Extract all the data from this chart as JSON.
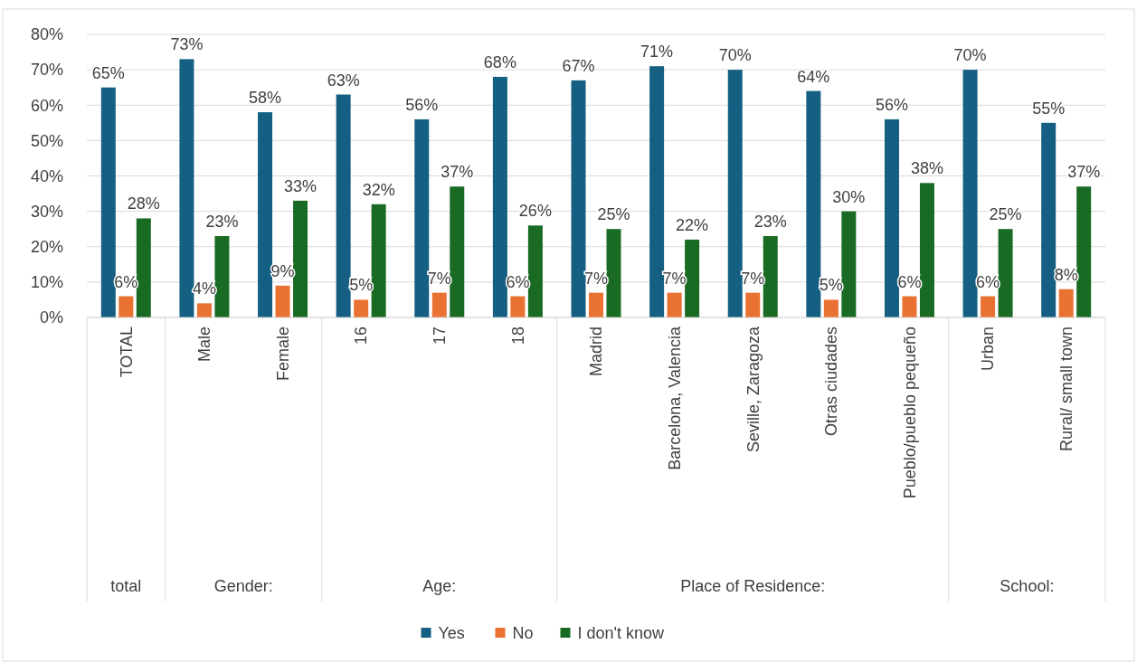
{
  "chart_data": {
    "type": "bar",
    "categories": [
      "TOTAL",
      "Male",
      "Female",
      "16",
      "17",
      "18",
      "Madrid",
      "Barcelona, Valencia",
      "Seville, Zaragoza",
      "Otras ciudades",
      "Pueblo/pueblo pequeño",
      "Urban",
      "Rural/ small town"
    ],
    "series": [
      {
        "name": "Yes",
        "color": "#156082",
        "values": [
          65,
          73,
          58,
          63,
          56,
          68,
          67,
          71,
          70,
          64,
          56,
          70,
          55
        ],
        "value_labels": [
          "65%",
          "73%",
          "58%",
          "63%",
          "56%",
          "68%",
          "67%",
          "71%",
          "70%",
          "64%",
          "56%",
          "70%",
          "55%"
        ]
      },
      {
        "name": "No",
        "color": "#e97132",
        "values": [
          6,
          4,
          9,
          5,
          7,
          6,
          7,
          7,
          7,
          5,
          6,
          6,
          8
        ],
        "value_labels": [
          "6%",
          "4%",
          "9%",
          "5%",
          "7%",
          "6%",
          "7%",
          "7%",
          "7%",
          "5%",
          "6%",
          "6%",
          "8%"
        ]
      },
      {
        "name": "I don't know",
        "color": "#196b24",
        "values": [
          28,
          23,
          33,
          32,
          37,
          26,
          25,
          22,
          23,
          30,
          38,
          25,
          37
        ],
        "value_labels": [
          "28%",
          "23%",
          "33%",
          "32%",
          "37%",
          "26%",
          "25%",
          "22%",
          "23%",
          "30%",
          "38%",
          "25%",
          "37%"
        ]
      }
    ],
    "ylim": [
      0,
      80
    ],
    "yticks": [
      {
        "value": 0,
        "label": "0%"
      },
      {
        "value": 10,
        "label": "10%"
      },
      {
        "value": 20,
        "label": "20%"
      },
      {
        "value": 30,
        "label": "30%"
      },
      {
        "value": 40,
        "label": "40%"
      },
      {
        "value": 50,
        "label": "50%"
      },
      {
        "value": 60,
        "label": "60%"
      },
      {
        "value": 70,
        "label": "70%"
      },
      {
        "value": 80,
        "label": "80%"
      }
    ],
    "annotations": [
      "total",
      "Gender:",
      "Age:",
      "Place of Residence:",
      "School:"
    ],
    "grid": "y",
    "legend": "bottom"
  }
}
